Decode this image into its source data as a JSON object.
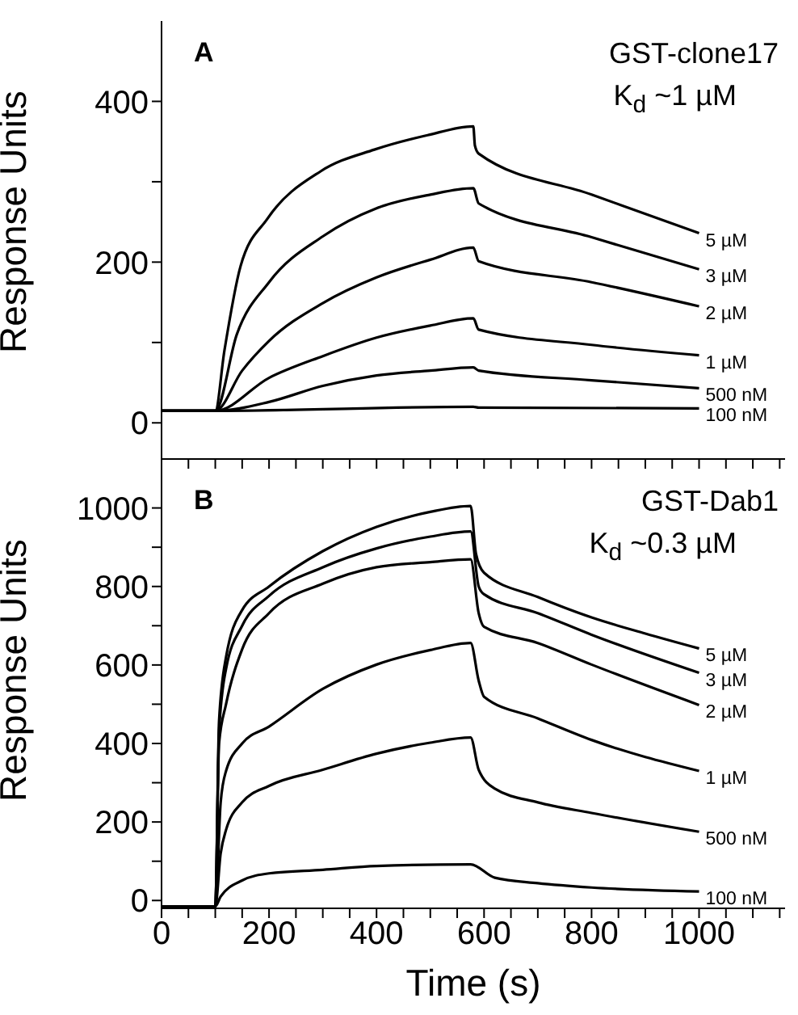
{
  "chart_data": [
    {
      "type": "line",
      "ylabel": "Response Units",
      "annotations": [
        "A",
        "GST-clone17",
        "K$_{d}$ ~1 µM"
      ],
      "xlim": [
        0,
        1160
      ],
      "xticks": [
        0,
        {
          "value": 50,
          "label": null
        },
        {
          "value": 100,
          "label": null
        },
        {
          "value": 150,
          "label": null
        },
        {
          "value": 200,
          "label": null
        },
        {
          "value": 250,
          "label": null
        },
        {
          "value": 300,
          "label": null
        },
        {
          "value": 350,
          "label": null
        },
        {
          "value": 400,
          "label": null
        },
        {
          "value": 450,
          "label": null
        },
        {
          "value": 500,
          "label": null
        },
        {
          "value": 550,
          "label": null
        },
        {
          "value": 600,
          "label": null
        },
        {
          "value": 650,
          "label": null
        },
        {
          "value": 700,
          "label": null
        },
        {
          "value": 750,
          "label": null
        },
        {
          "value": 800,
          "label": null
        },
        {
          "value": 850,
          "label": null
        },
        {
          "value": 900,
          "label": null
        },
        {
          "value": 950,
          "label": null
        },
        {
          "value": 1000,
          "label": null
        },
        {
          "value": 1050,
          "label": null
        },
        {
          "value": 1100,
          "label": null
        },
        {
          "value": 1150,
          "label": null
        }
      ],
      "ylim": [
        -45,
        500
      ],
      "yticks": [
        0,
        {
          "value": 100,
          "label": null
        },
        200,
        {
          "value": 300,
          "label": null
        },
        400
      ],
      "tick_labels": "y",
      "series": [
        {
          "name": "5 µM",
          "color": "#000000",
          "x": [
            0,
            100,
            117,
            147,
            197,
            296,
            396,
            495,
            580,
            583,
            590,
            800,
            1000
          ],
          "values": [
            15,
            15,
            90,
            195,
            254,
            313,
            340,
            358,
            369,
            345,
            335,
            284,
            236
          ]
        },
        {
          "name": "3 µM",
          "color": "#000000",
          "x": [
            0,
            100,
            140,
            200,
            300,
            400,
            500,
            580,
            590,
            800,
            1000
          ],
          "values": [
            15,
            15,
            110,
            175,
            232,
            267,
            284,
            292,
            273,
            231,
            191
          ]
        },
        {
          "name": "2 µM",
          "color": "#000000",
          "x": [
            0,
            100,
            150,
            200,
            300,
            400,
            500,
            580,
            590,
            800,
            1000
          ],
          "values": [
            15,
            15,
            65,
            102,
            149,
            181,
            203,
            218,
            201,
            175,
            145
          ]
        },
        {
          "name": "1 µM",
          "color": "#000000",
          "x": [
            0,
            100,
            200,
            300,
            400,
            500,
            580,
            590,
            800,
            1000
          ],
          "values": [
            15,
            15,
            56,
            83,
            106,
            121,
            130,
            116,
            97,
            84
          ]
        },
        {
          "name": "500 nM",
          "color": "#000000",
          "x": [
            0,
            100,
            200,
            300,
            400,
            500,
            580,
            590,
            800,
            1000
          ],
          "values": [
            15,
            15,
            26,
            46,
            59,
            65,
            69,
            65,
            53,
            43
          ]
        },
        {
          "name": "100 nM",
          "color": "#000000",
          "x": [
            0,
            100,
            580,
            590,
            1000
          ],
          "values": [
            15,
            15,
            20,
            19,
            18
          ]
        }
      ]
    },
    {
      "type": "line",
      "xlabel": "Time (s)",
      "ylabel": "Response Units",
      "annotations": [
        "B",
        "GST-Dab1",
        "K$_{d}$ ~0.3 µM"
      ],
      "xlim": [
        0,
        1160
      ],
      "xticks": [
        0,
        {
          "value": 50,
          "label": null
        },
        {
          "value": 100,
          "label": null
        },
        {
          "value": 150,
          "label": null
        },
        200,
        {
          "value": 250,
          "label": null
        },
        {
          "value": 300,
          "label": null
        },
        {
          "value": 350,
          "label": null
        },
        400,
        {
          "value": 450,
          "label": null
        },
        {
          "value": 500,
          "label": null
        },
        {
          "value": 550,
          "label": null
        },
        600,
        {
          "value": 650,
          "label": null
        },
        {
          "value": 700,
          "label": null
        },
        {
          "value": 750,
          "label": null
        },
        800,
        {
          "value": 850,
          "label": null
        },
        {
          "value": 900,
          "label": null
        },
        {
          "value": 950,
          "label": null
        },
        1000,
        {
          "value": 1050,
          "label": null
        },
        {
          "value": 1100,
          "label": null
        },
        {
          "value": 1150,
          "label": null
        }
      ],
      "ylim": [
        -20,
        1100
      ],
      "yticks": [
        0,
        {
          "value": 100,
          "label": null
        },
        200,
        {
          "value": 300,
          "label": null
        },
        400,
        {
          "value": 500,
          "label": null
        },
        600,
        {
          "value": 700,
          "label": null
        },
        800,
        {
          "value": 900,
          "label": null
        },
        1000
      ],
      "series": [
        {
          "name": "5 µM",
          "color": "#000000",
          "x": [
            0,
            100,
            107,
            120,
            150,
            200,
            300,
            400,
            500,
            575,
            585,
            600,
            700,
            800,
            900,
            1000
          ],
          "values": [
            -15,
            -15,
            457,
            620,
            740,
            800,
            890,
            952,
            990,
            1005,
            883,
            835,
            773,
            721,
            680,
            642
          ]
        },
        {
          "name": "3 µM",
          "color": "#000000",
          "x": [
            0,
            100,
            107,
            120,
            150,
            200,
            300,
            400,
            500,
            575,
            590,
            600,
            700,
            800,
            1000
          ],
          "values": [
            -15,
            -15,
            430,
            590,
            700,
            776,
            849,
            897,
            927,
            940,
            800,
            780,
            732,
            677,
            580
          ]
        },
        {
          "name": "2 µM",
          "color": "#000000",
          "x": [
            0,
            100,
            107,
            120,
            150,
            200,
            300,
            400,
            500,
            575,
            590,
            600,
            700,
            800,
            1000
          ],
          "values": [
            -15,
            -15,
            400,
            500,
            640,
            732,
            807,
            849,
            862,
            869,
            732,
            697,
            656,
            601,
            498
          ]
        },
        {
          "name": "1 µM",
          "color": "#000000",
          "x": [
            0,
            100,
            110,
            120,
            150,
            200,
            300,
            400,
            500,
            575,
            590,
            600,
            700,
            800,
            1000
          ],
          "values": [
            -15,
            -15,
            250,
            330,
            400,
            443,
            539,
            601,
            638,
            656,
            560,
            519,
            464,
            409,
            330
          ]
        },
        {
          "name": "500 nM",
          "color": "#000000",
          "x": [
            0,
            100,
            110,
            120,
            150,
            200,
            300,
            400,
            500,
            575,
            590,
            620,
            700,
            800,
            1000
          ],
          "values": [
            -15,
            -15,
            120,
            180,
            250,
            292,
            333,
            374,
            402,
            415,
            333,
            285,
            250,
            223,
            175
          ]
        },
        {
          "name": "100 nM",
          "color": "#000000",
          "x": [
            0,
            100,
            110,
            150,
            200,
            300,
            400,
            575,
            620,
            700,
            800,
            1000
          ],
          "values": [
            -15,
            -15,
            10,
            51,
            69,
            78,
            88,
            92,
            58,
            44,
            33,
            23
          ]
        }
      ]
    }
  ]
}
